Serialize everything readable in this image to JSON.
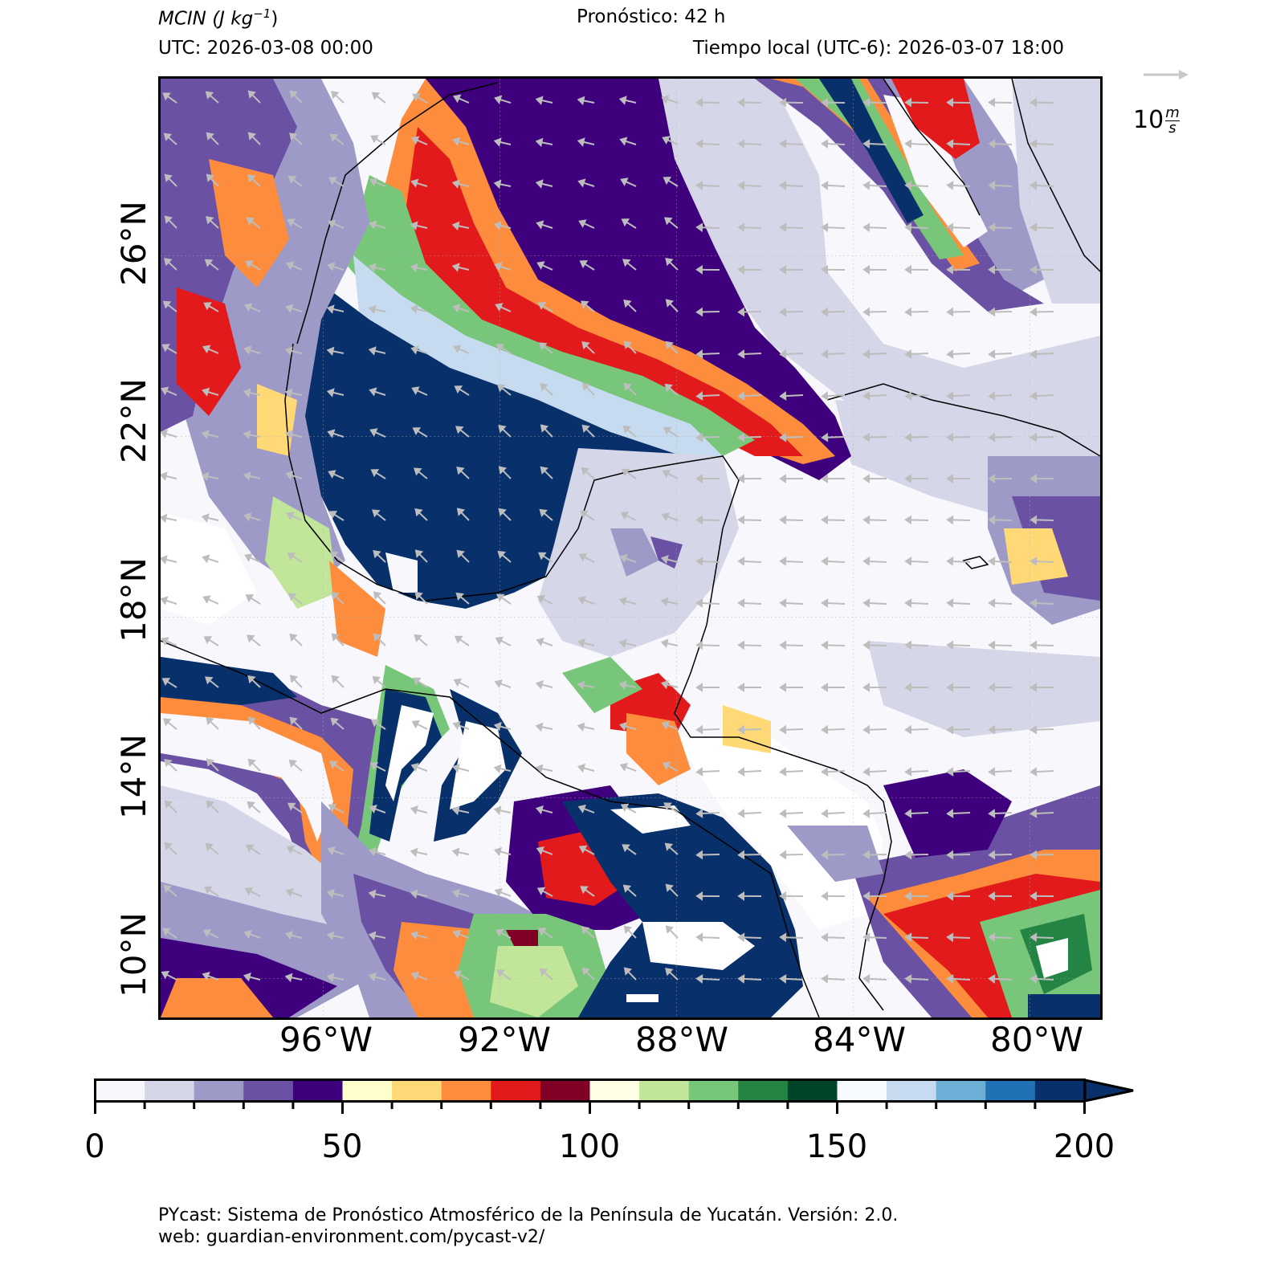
{
  "header": {
    "variable_label": "MCIN (J kg",
    "variable_exp": "−1",
    "variable_close": ")",
    "forecast": "Pronóstico: 42 h",
    "utc": "UTC:  2026-03-08 00:00",
    "local": "Tiempo local (UTC-6): 2026-03-07 18:00"
  },
  "wind_key": {
    "label_num": "10",
    "label_unit_top": "m",
    "label_unit_bottom": "s"
  },
  "map": {
    "lat_labels": [
      "26°N",
      "22°N",
      "18°N",
      "14°N",
      "10°N"
    ],
    "lon_labels": [
      "96°W",
      "92°W",
      "88°W",
      "84°W",
      "80°W"
    ]
  },
  "colorbar": {
    "ticks": [
      "0",
      "50",
      "100",
      "150",
      "200"
    ],
    "bins": [
      0,
      10,
      20,
      30,
      40,
      50,
      60,
      70,
      80,
      90,
      100,
      110,
      120,
      130,
      140,
      150,
      160,
      170,
      180,
      190,
      200
    ],
    "colors": [
      "#f7f7fb",
      "#d6d6e9",
      "#9e9ac8",
      "#6a51a3",
      "#3f007d",
      "#ffffcc",
      "#fed976",
      "#fd8d3c",
      "#e31a1c",
      "#800026",
      "#ffffe5",
      "#c2e699",
      "#78c679",
      "#238443",
      "#004529",
      "#f7fbff",
      "#c6dbef",
      "#6baed6",
      "#2171b5",
      "#08306b"
    ],
    "extend": "max"
  },
  "footer": {
    "line1": "PYcast: Sistema de Pronóstico Atmosférico de la Península de Yucatán. Versión: 2.0.",
    "line2": "web: guardian-environment.com/pycast-v2/"
  }
}
